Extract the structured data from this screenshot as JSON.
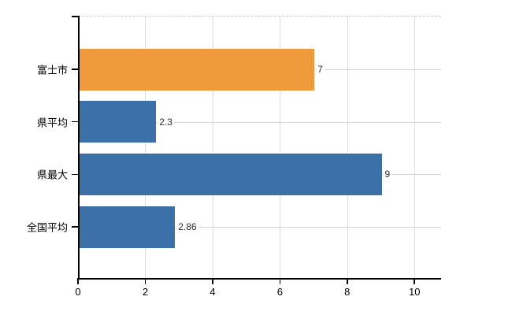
{
  "chart_data": {
    "type": "bar",
    "orientation": "horizontal",
    "title": "",
    "xlabel": "",
    "ylabel": "",
    "categories": [
      "富士市",
      "県平均",
      "県最大",
      "全国平均"
    ],
    "values": [
      7,
      2.3,
      9,
      2.86
    ],
    "data_labels": [
      "7",
      "2.3",
      "9",
      "2.86"
    ],
    "bar_colors": [
      "#ef9a3d",
      "#3c70a8",
      "#3c70a8",
      "#3c70a8"
    ],
    "x_ticks": [
      "0",
      "2",
      "4",
      "6",
      "8",
      "10"
    ],
    "x_tick_values": [
      0,
      2,
      4,
      6,
      8,
      10
    ],
    "xlim": [
      0,
      10.79
    ],
    "grid": true,
    "legend": false
  },
  "colors": {
    "background": "#ffffff",
    "bar_orange": "#ef9a3d",
    "bar_blue": "#3c70a8",
    "axis": "#000000",
    "vertical_gridline": "#dcdcdc",
    "horizontal_gridline": "#ccd7cc",
    "top_border": "#c9c9c9",
    "category_text": "#000000",
    "value_text": "#2b2b2b"
  }
}
